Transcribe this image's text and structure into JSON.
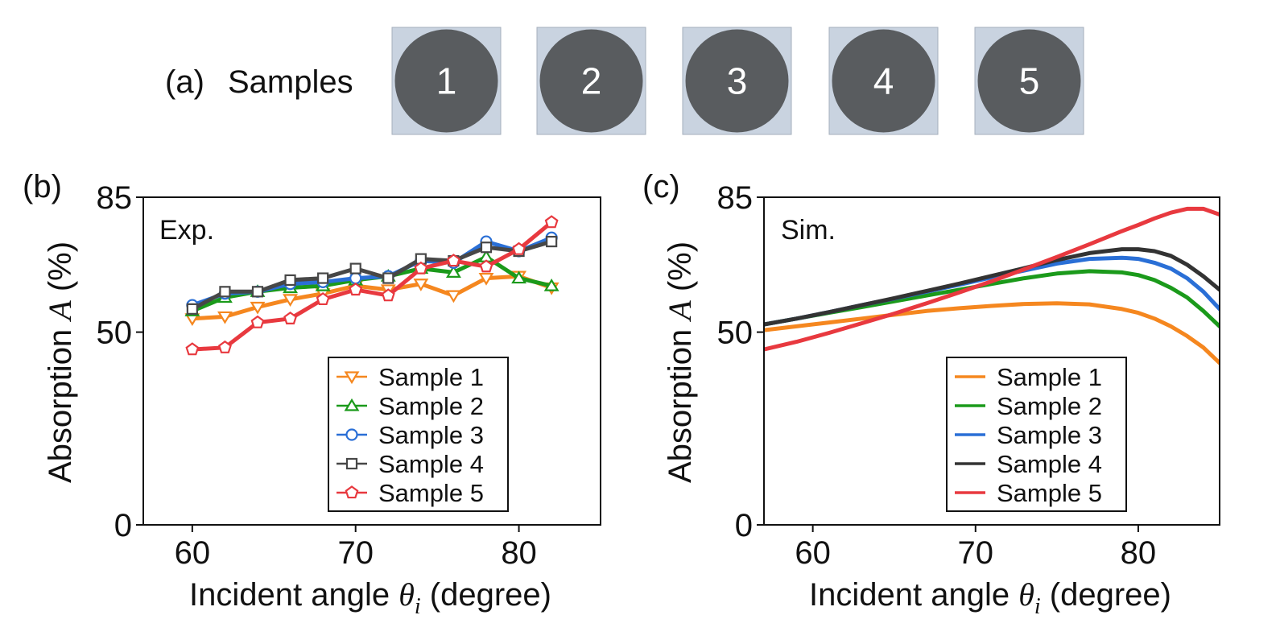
{
  "panel_a": {
    "label": "(a)",
    "title": "Samples",
    "samples": [
      "1",
      "2",
      "3",
      "4",
      "5"
    ]
  },
  "chart_data": [
    {
      "panel_label": "(b)",
      "type": "line",
      "annotation": "Exp.",
      "xlabel_prefix": "Incident angle ",
      "xlabel_symbol": "θ",
      "xlabel_subscript": "i",
      "xlabel_suffix": " (degree)",
      "ylabel_prefix": "Absorption ",
      "ylabel_symbol": "A",
      "ylabel_suffix": " (%)",
      "xlim": [
        57,
        85
      ],
      "ylim": [
        0,
        85
      ],
      "xticks": [
        60,
        70,
        80
      ],
      "yticks": [
        0,
        50,
        85
      ],
      "legend_position": "lower-right",
      "markers": true,
      "x": [
        60,
        62,
        64,
        66,
        68,
        70,
        72,
        74,
        76,
        78,
        80,
        82
      ],
      "series": [
        {
          "name": "Sample 1",
          "color": "#f5871f",
          "marker": "triangle-down",
          "values": [
            53.5,
            54.0,
            56.5,
            58.5,
            60.0,
            62.0,
            61.0,
            62.5,
            59.5,
            64.0,
            64.5,
            61.5
          ]
        },
        {
          "name": "Sample 2",
          "color": "#1b9a1b",
          "marker": "triangle-up",
          "values": [
            55.5,
            59.0,
            60.5,
            61.5,
            62.0,
            63.5,
            64.5,
            66.5,
            65.5,
            69.5,
            64.0,
            62.0
          ]
        },
        {
          "name": "Sample 3",
          "color": "#2a6fd6",
          "marker": "circle",
          "values": [
            57.0,
            60.0,
            60.5,
            62.5,
            63.0,
            64.0,
            64.5,
            68.5,
            68.0,
            73.5,
            71.0,
            74.5
          ]
        },
        {
          "name": "Sample 4",
          "color": "#474747",
          "marker": "square",
          "values": [
            56.0,
            60.5,
            60.5,
            63.5,
            64.0,
            66.5,
            64.0,
            69.0,
            68.5,
            72.0,
            71.0,
            73.5
          ]
        },
        {
          "name": "Sample 5",
          "color": "#e8393f",
          "marker": "pentagon",
          "values": [
            45.5,
            46.0,
            52.5,
            53.5,
            58.5,
            61.0,
            59.5,
            66.5,
            68.5,
            67.0,
            71.5,
            78.5
          ]
        }
      ]
    },
    {
      "panel_label": "(c)",
      "type": "line",
      "annotation": "Sim.",
      "xlabel_prefix": "Incident angle ",
      "xlabel_symbol": "θ",
      "xlabel_subscript": "i",
      "xlabel_suffix": " (degree)",
      "ylabel_prefix": "Absorption ",
      "ylabel_symbol": "A",
      "ylabel_suffix": " (%)",
      "xlim": [
        57,
        85
      ],
      "ylim": [
        0,
        85
      ],
      "xticks": [
        60,
        70,
        80
      ],
      "yticks": [
        0,
        50,
        85
      ],
      "legend_position": "lower-right",
      "markers": false,
      "x": [
        57,
        59,
        61,
        63,
        65,
        67,
        69,
        71,
        73,
        75,
        77,
        79,
        80,
        81,
        82,
        83,
        84,
        85
      ],
      "series": [
        {
          "name": "Sample 1",
          "color": "#f5871f",
          "values": [
            50.5,
            51.5,
            52.5,
            53.5,
            54.5,
            55.5,
            56.2,
            56.8,
            57.3,
            57.5,
            57.2,
            56.0,
            55.0,
            53.5,
            51.5,
            49.0,
            46.0,
            42.0
          ]
        },
        {
          "name": "Sample 2",
          "color": "#1b9a1b",
          "values": [
            52.0,
            53.5,
            55.0,
            56.5,
            58.0,
            59.5,
            61.0,
            62.5,
            64.0,
            65.2,
            65.8,
            65.5,
            64.8,
            63.5,
            61.5,
            59.0,
            55.5,
            51.5
          ]
        },
        {
          "name": "Sample 3",
          "color": "#2a6fd6",
          "values": [
            52.0,
            53.5,
            55.2,
            57.0,
            58.7,
            60.5,
            62.3,
            64.2,
            66.0,
            67.8,
            69.0,
            69.3,
            69.0,
            68.0,
            66.5,
            64.0,
            60.5,
            56.0
          ]
        },
        {
          "name": "Sample 4",
          "color": "#333333",
          "values": [
            52.0,
            53.5,
            55.2,
            57.0,
            58.8,
            60.7,
            62.6,
            64.6,
            66.6,
            68.7,
            70.5,
            71.5,
            71.5,
            71.0,
            69.8,
            67.5,
            64.5,
            61.0
          ]
        },
        {
          "name": "Sample 5",
          "color": "#e8393f",
          "values": [
            45.5,
            47.5,
            49.8,
            52.3,
            54.8,
            57.5,
            60.3,
            63.2,
            66.3,
            69.5,
            72.8,
            76.2,
            77.8,
            79.5,
            81.0,
            82.0,
            82.0,
            80.5
          ]
        }
      ]
    }
  ]
}
